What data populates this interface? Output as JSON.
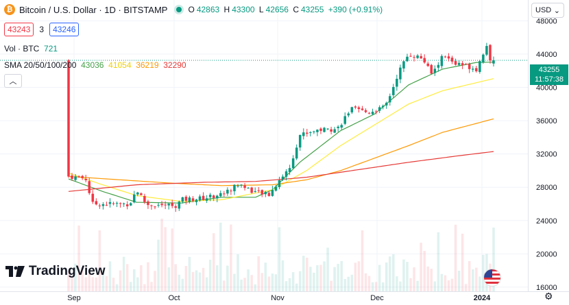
{
  "header": {
    "symbol_icon": "bitcoin-icon",
    "title": "Bitcoin / U.S. Dollar · 1D · BITSTAMP",
    "ohlc": {
      "o_label": "O",
      "o": "42863",
      "h_label": "H",
      "h": "43300",
      "l_label": "L",
      "l": "42656",
      "c_label": "C",
      "c": "43255",
      "change": "+390 (+0.91%)"
    },
    "bid": "43243",
    "spread": "3",
    "ask": "43246"
  },
  "volume": {
    "label": "Vol · BTC",
    "value": "721"
  },
  "sma": {
    "label": "SMA 20/50/100/200",
    "v20": "43036",
    "v50": "41054",
    "v100": "36219",
    "v200": "32290"
  },
  "currency": "USD",
  "price_tag": {
    "price": "43255",
    "countdown": "11:57:38"
  },
  "brand": "TradingView",
  "colors": {
    "up": "#089981",
    "down": "#f23645",
    "sma20": "#43a047",
    "sma50": "#ffeb3b",
    "sma100": "#ff9800",
    "sma200": "#e53935"
  },
  "chart_data": {
    "type": "candlestick",
    "x_ticks": [
      "Sep",
      "Oct",
      "Nov",
      "Dec",
      "2024"
    ],
    "y_ticks": [
      16000,
      20000,
      24000,
      28000,
      32000,
      36000,
      40000,
      44000,
      48000
    ],
    "ylim": [
      15500,
      50500
    ],
    "anchors": [
      {
        "x": 0,
        "p": 29300
      },
      {
        "x": 0.05,
        "p": 29100
      },
      {
        "x": 0.07,
        "p": 26000
      },
      {
        "x": 0.18,
        "p": 26000
      },
      {
        "x": 0.2,
        "p": 27700
      },
      {
        "x": 0.23,
        "p": 25900
      },
      {
        "x": 0.32,
        "p": 25800
      },
      {
        "x": 0.33,
        "p": 26500
      },
      {
        "x": 0.4,
        "p": 26700
      },
      {
        "x": 0.46,
        "p": 27300
      },
      {
        "x": 0.5,
        "p": 28400
      },
      {
        "x": 0.55,
        "p": 27400
      },
      {
        "x": 0.59,
        "p": 27100
      },
      {
        "x": 0.62,
        "p": 28900
      },
      {
        "x": 0.65,
        "p": 30300
      },
      {
        "x": 0.68,
        "p": 34300
      },
      {
        "x": 0.73,
        "p": 34900
      },
      {
        "x": 0.79,
        "p": 35000
      },
      {
        "x": 0.83,
        "p": 37400
      },
      {
        "x": 0.88,
        "p": 37000
      },
      {
        "x": 0.93,
        "p": 37600
      },
      {
        "x": 0.95,
        "p": 39500
      },
      {
        "x": 0.97,
        "p": 41800
      },
      {
        "x": 1.0,
        "p": 44000
      },
      {
        "x": 1.04,
        "p": 43500
      },
      {
        "x": 1.07,
        "p": 41500
      },
      {
        "x": 1.1,
        "p": 43800
      },
      {
        "x": 1.14,
        "p": 42800
      },
      {
        "x": 1.17,
        "p": 42600
      },
      {
        "x": 1.2,
        "p": 42200
      },
      {
        "x": 1.23,
        "p": 45200
      },
      {
        "x": 1.24,
        "p": 42900
      },
      {
        "x": 1.25,
        "p": 43255
      }
    ],
    "sma_series": [
      {
        "label_key": "v20",
        "color": "#43a047",
        "points": [
          {
            "x": 0,
            "p": 29000
          },
          {
            "x": 0.1,
            "p": 27500
          },
          {
            "x": 0.2,
            "p": 26200
          },
          {
            "x": 0.33,
            "p": 26100
          },
          {
            "x": 0.45,
            "p": 26800
          },
          {
            "x": 0.55,
            "p": 26800
          },
          {
            "x": 0.6,
            "p": 27700
          },
          {
            "x": 0.68,
            "p": 31000
          },
          {
            "x": 0.8,
            "p": 34800
          },
          {
            "x": 0.9,
            "p": 36800
          },
          {
            "x": 1.0,
            "p": 40300
          },
          {
            "x": 1.1,
            "p": 42200
          },
          {
            "x": 1.2,
            "p": 43000
          },
          {
            "x": 1.25,
            "p": 43036
          }
        ]
      },
      {
        "label_key": "v50",
        "color": "#ffeb3b",
        "points": [
          {
            "x": 0,
            "p": 29700
          },
          {
            "x": 0.1,
            "p": 28300
          },
          {
            "x": 0.2,
            "p": 27000
          },
          {
            "x": 0.33,
            "p": 26300
          },
          {
            "x": 0.45,
            "p": 26500
          },
          {
            "x": 0.6,
            "p": 27700
          },
          {
            "x": 0.7,
            "p": 30000
          },
          {
            "x": 0.8,
            "p": 33000
          },
          {
            "x": 0.9,
            "p": 35500
          },
          {
            "x": 1.0,
            "p": 38000
          },
          {
            "x": 1.1,
            "p": 39600
          },
          {
            "x": 1.25,
            "p": 41054
          }
        ]
      },
      {
        "label_key": "v100",
        "color": "#ff9800",
        "points": [
          {
            "x": 0,
            "p": 29300
          },
          {
            "x": 0.15,
            "p": 28900
          },
          {
            "x": 0.3,
            "p": 28500
          },
          {
            "x": 0.45,
            "p": 28200
          },
          {
            "x": 0.6,
            "p": 28300
          },
          {
            "x": 0.7,
            "p": 28900
          },
          {
            "x": 0.8,
            "p": 30000
          },
          {
            "x": 0.9,
            "p": 31500
          },
          {
            "x": 1.0,
            "p": 33000
          },
          {
            "x": 1.1,
            "p": 34600
          },
          {
            "x": 1.25,
            "p": 36219
          }
        ]
      },
      {
        "label_key": "v200",
        "color": "#e53935",
        "points": [
          {
            "x": 0,
            "p": 27500
          },
          {
            "x": 0.2,
            "p": 28300
          },
          {
            "x": 0.4,
            "p": 28600
          },
          {
            "x": 0.55,
            "p": 28700
          },
          {
            "x": 0.7,
            "p": 29200
          },
          {
            "x": 0.85,
            "p": 30100
          },
          {
            "x": 1.0,
            "p": 31000
          },
          {
            "x": 1.15,
            "p": 31800
          },
          {
            "x": 1.25,
            "p": 32290
          }
        ]
      }
    ],
    "volume_units": "BTC"
  }
}
